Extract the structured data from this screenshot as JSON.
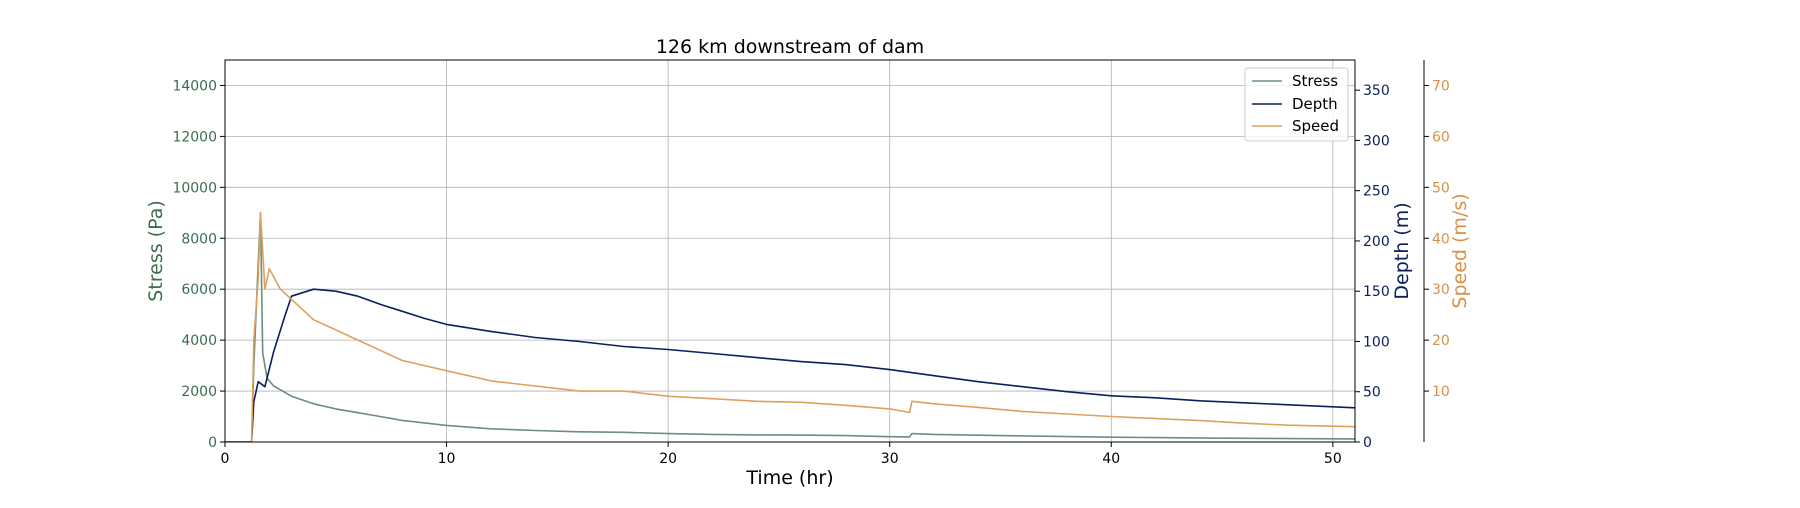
{
  "chart_data": {
    "type": "line",
    "title": "126 km downstream of dam",
    "xlabel": "Time (hr)",
    "xlim": [
      0,
      51
    ],
    "xticks": [
      0,
      10,
      20,
      30,
      40,
      50
    ],
    "grid": true,
    "legend_position": "top-right",
    "axes": {
      "stress": {
        "label": "Stress (Pa)",
        "ylim": [
          0,
          15000
        ],
        "ticks": [
          0,
          2000,
          4000,
          6000,
          8000,
          10000,
          12000,
          14000
        ],
        "color": "#3b6e4f"
      },
      "depth": {
        "label": "Depth (m)",
        "ylim": [
          0,
          380
        ],
        "ticks": [
          0,
          50,
          100,
          150,
          200,
          250,
          300,
          350
        ],
        "color": "#0b1f5c"
      },
      "speed": {
        "label": "Speed (m/s)",
        "ylim": [
          0,
          75
        ],
        "ticks": [
          10,
          20,
          30,
          40,
          50,
          60,
          70
        ],
        "color": "#d9904a"
      }
    },
    "series": [
      {
        "name": "Stress",
        "axis": "stress",
        "color": "#6b8f78",
        "x": [
          0,
          1.2,
          1.3,
          1.5,
          1.6,
          1.7,
          1.9,
          2.2,
          2.6,
          3,
          4,
          5,
          6,
          7,
          8,
          9,
          10,
          12,
          14,
          16,
          18,
          20,
          22,
          24,
          26,
          28,
          30,
          30.9,
          31,
          32,
          35,
          40,
          45,
          51
        ],
        "y": [
          0,
          0,
          3000,
          7000,
          9000,
          3500,
          2500,
          2200,
          2000,
          1800,
          1500,
          1300,
          1150,
          1000,
          850,
          750,
          650,
          520,
          450,
          400,
          380,
          330,
          300,
          280,
          270,
          250,
          210,
          200,
          330,
          300,
          250,
          190,
          150,
          120
        ]
      },
      {
        "name": "Depth",
        "axis": "depth",
        "color": "#0b1f5c",
        "x": [
          0,
          1.2,
          1.3,
          1.5,
          1.8,
          2.2,
          2.7,
          3,
          4,
          5,
          6,
          7,
          8,
          9,
          10,
          12,
          14,
          16,
          18,
          20,
          22,
          24,
          26,
          28,
          30,
          32,
          34,
          36,
          38,
          40,
          42,
          44,
          46,
          48,
          51
        ],
        "y": [
          0,
          0,
          40,
          60,
          55,
          90,
          125,
          145,
          152,
          150,
          145,
          137,
          130,
          123,
          117,
          110,
          104,
          100,
          95,
          92,
          88,
          84,
          80,
          77,
          72,
          66,
          60,
          55,
          50,
          46,
          44,
          41,
          39,
          37,
          34
        ]
      },
      {
        "name": "Speed",
        "axis": "speed",
        "color": "#dda15e",
        "x": [
          0,
          1.2,
          1.3,
          1.5,
          1.6,
          1.8,
          2.0,
          2.5,
          3,
          4,
          5,
          6,
          7,
          8,
          9,
          10,
          12,
          14,
          16,
          18,
          20,
          22,
          24,
          26,
          28,
          30,
          30.9,
          31,
          32,
          34,
          36,
          38,
          40,
          42,
          44,
          46,
          48,
          51
        ],
        "y": [
          0,
          0,
          20,
          32,
          45,
          30,
          34,
          30,
          28,
          24,
          22,
          20,
          18,
          16,
          15,
          14,
          12,
          11,
          10,
          10,
          9,
          8.5,
          8,
          7.8,
          7.2,
          6.5,
          5.8,
          8,
          7.5,
          6.8,
          6,
          5.5,
          5,
          4.6,
          4.2,
          3.7,
          3.3,
          3
        ]
      }
    ]
  }
}
